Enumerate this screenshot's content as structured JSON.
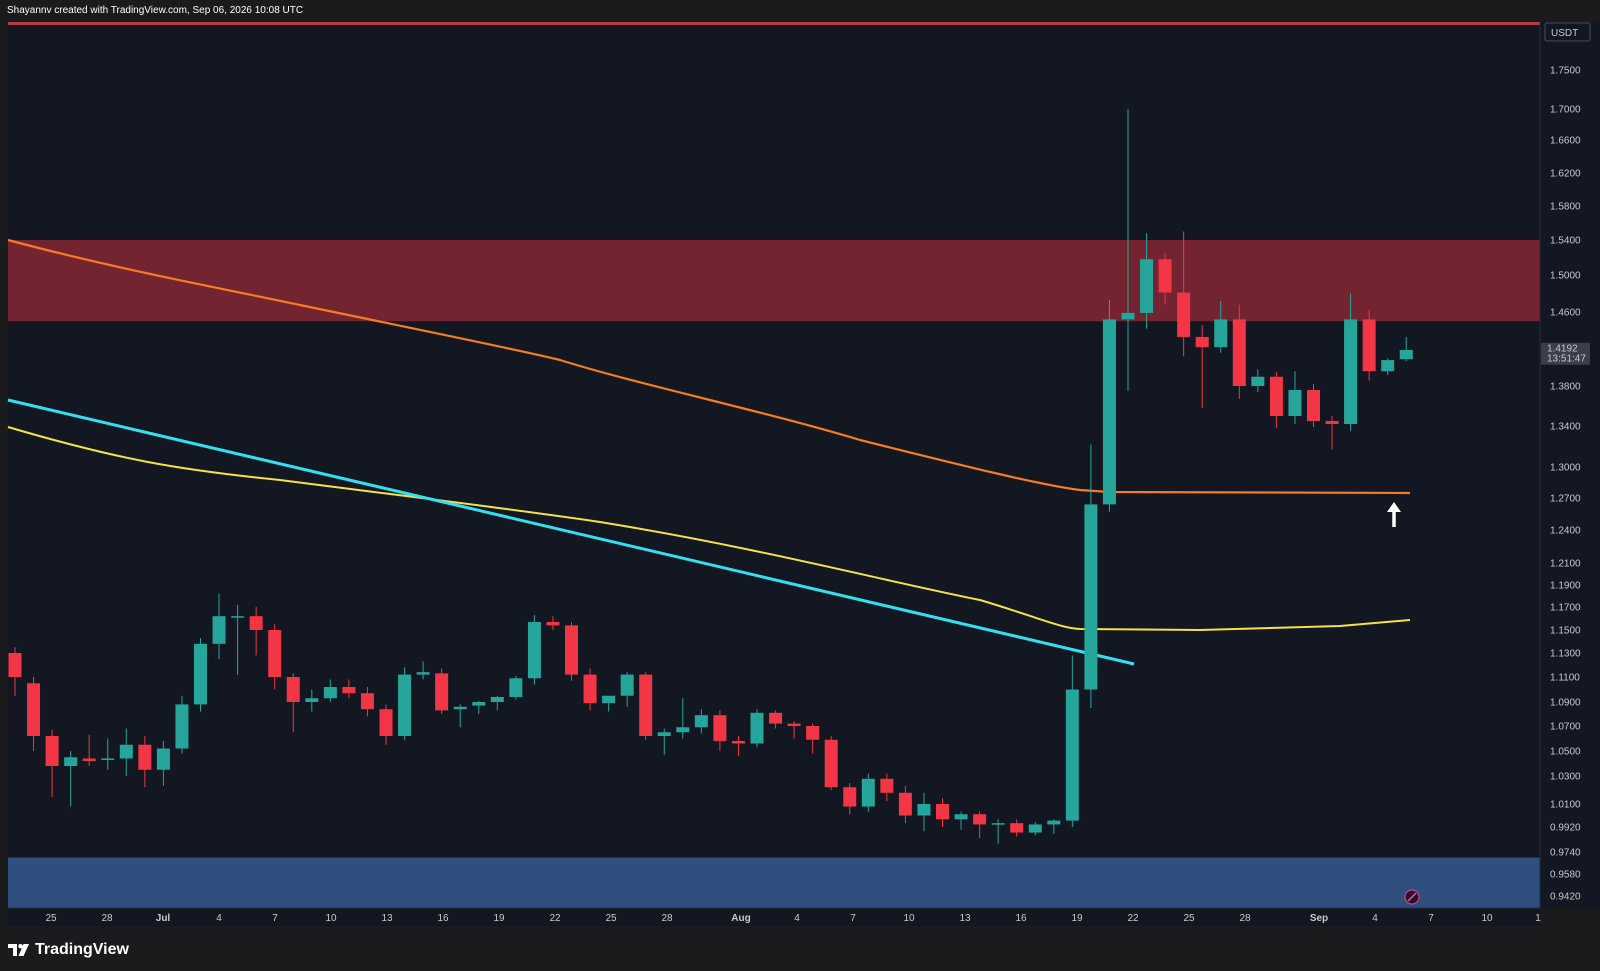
{
  "header": {
    "attribution": "Shayannv created with TradingView.com, Sep 06, 2026 10:08 UTC"
  },
  "footer": {
    "brand": "TradingView"
  },
  "colors": {
    "background": "#131722",
    "up": "#26a69a",
    "down": "#f23645",
    "resistance_zone": "#742330",
    "support_zone": "#2f4f7f",
    "ema_orange": "#f57c1f",
    "ema_yellow": "#f5e14a",
    "trendline": "#33e0f0",
    "top_line": "#b43a45"
  },
  "price_scale": {
    "currency_label": "USDT",
    "ticks": [
      "1.7500",
      "1.7000",
      "1.6600",
      "1.6200",
      "1.5800",
      "1.5400",
      "1.5000",
      "1.4600",
      "1.3800",
      "1.3400",
      "1.3000",
      "1.2700",
      "1.2400",
      "1.2100",
      "1.1900",
      "1.1700",
      "1.1500",
      "1.1300",
      "1.1100",
      "1.0900",
      "1.0700",
      "1.0500",
      "1.0300",
      "1.0100",
      "0.9920",
      "0.9740",
      "0.9580",
      "0.9420"
    ],
    "current_price": "1.4192",
    "countdown": "13:51:47"
  },
  "chart_data": {
    "type": "candlestick",
    "symbol_quote": "USDT",
    "interval": "1D",
    "x_labels": [
      "25",
      "28",
      "Jul",
      "4",
      "7",
      "10",
      "13",
      "16",
      "19",
      "22",
      "25",
      "28",
      "Aug",
      "4",
      "7",
      "10",
      "13",
      "16",
      "19",
      "22",
      "25",
      "28",
      "Sep",
      "4",
      "7",
      "10",
      "1"
    ],
    "zones": {
      "resistance": [
        1.45,
        1.54
      ],
      "support": [
        0.9,
        0.97
      ]
    },
    "candles": [
      {
        "o": 1.13,
        "h": 1.135,
        "l": 1.095,
        "c": 1.11
      },
      {
        "o": 1.105,
        "h": 1.11,
        "l": 1.05,
        "c": 1.062
      },
      {
        "o": 1.062,
        "h": 1.067,
        "l": 1.015,
        "c": 1.038
      },
      {
        "o": 1.038,
        "h": 1.05,
        "l": 1.008,
        "c": 1.045
      },
      {
        "o": 1.044,
        "h": 1.063,
        "l": 1.038,
        "c": 1.042
      },
      {
        "o": 1.043,
        "h": 1.06,
        "l": 1.035,
        "c": 1.044
      },
      {
        "o": 1.044,
        "h": 1.068,
        "l": 1.03,
        "c": 1.055
      },
      {
        "o": 1.055,
        "h": 1.062,
        "l": 1.022,
        "c": 1.035
      },
      {
        "o": 1.035,
        "h": 1.058,
        "l": 1.023,
        "c": 1.052
      },
      {
        "o": 1.052,
        "h": 1.095,
        "l": 1.048,
        "c": 1.088
      },
      {
        "o": 1.088,
        "h": 1.143,
        "l": 1.082,
        "c": 1.138
      },
      {
        "o": 1.138,
        "h": 1.182,
        "l": 1.125,
        "c": 1.162
      },
      {
        "o": 1.162,
        "h": 1.172,
        "l": 1.112,
        "c": 1.162
      },
      {
        "o": 1.162,
        "h": 1.17,
        "l": 1.128,
        "c": 1.15
      },
      {
        "o": 1.15,
        "h": 1.155,
        "l": 1.1,
        "c": 1.11
      },
      {
        "o": 1.11,
        "h": 1.113,
        "l": 1.065,
        "c": 1.09
      },
      {
        "o": 1.09,
        "h": 1.1,
        "l": 1.082,
        "c": 1.093
      },
      {
        "o": 1.093,
        "h": 1.108,
        "l": 1.09,
        "c": 1.102
      },
      {
        "o": 1.102,
        "h": 1.108,
        "l": 1.093,
        "c": 1.097
      },
      {
        "o": 1.097,
        "h": 1.102,
        "l": 1.078,
        "c": 1.084
      },
      {
        "o": 1.084,
        "h": 1.088,
        "l": 1.055,
        "c": 1.062
      },
      {
        "o": 1.062,
        "h": 1.118,
        "l": 1.059,
        "c": 1.112
      },
      {
        "o": 1.112,
        "h": 1.123,
        "l": 1.108,
        "c": 1.114
      },
      {
        "o": 1.113,
        "h": 1.117,
        "l": 1.08,
        "c": 1.083
      },
      {
        "o": 1.084,
        "h": 1.088,
        "l": 1.069,
        "c": 1.086
      },
      {
        "o": 1.087,
        "h": 1.091,
        "l": 1.08,
        "c": 1.09
      },
      {
        "o": 1.09,
        "h": 1.095,
        "l": 1.083,
        "c": 1.094
      },
      {
        "o": 1.094,
        "h": 1.111,
        "l": 1.092,
        "c": 1.109
      },
      {
        "o": 1.109,
        "h": 1.163,
        "l": 1.104,
        "c": 1.157
      },
      {
        "o": 1.157,
        "h": 1.162,
        "l": 1.15,
        "c": 1.154
      },
      {
        "o": 1.154,
        "h": 1.157,
        "l": 1.107,
        "c": 1.112
      },
      {
        "o": 1.112,
        "h": 1.117,
        "l": 1.083,
        "c": 1.089
      },
      {
        "o": 1.089,
        "h": 1.094,
        "l": 1.082,
        "c": 1.095
      },
      {
        "o": 1.095,
        "h": 1.114,
        "l": 1.086,
        "c": 1.112
      },
      {
        "o": 1.112,
        "h": 1.114,
        "l": 1.059,
        "c": 1.062
      },
      {
        "o": 1.062,
        "h": 1.068,
        "l": 1.047,
        "c": 1.065
      },
      {
        "o": 1.065,
        "h": 1.093,
        "l": 1.06,
        "c": 1.069
      },
      {
        "o": 1.069,
        "h": 1.084,
        "l": 1.064,
        "c": 1.079
      },
      {
        "o": 1.079,
        "h": 1.083,
        "l": 1.05,
        "c": 1.058
      },
      {
        "o": 1.058,
        "h": 1.062,
        "l": 1.046,
        "c": 1.056
      },
      {
        "o": 1.056,
        "h": 1.084,
        "l": 1.053,
        "c": 1.081
      },
      {
        "o": 1.081,
        "h": 1.083,
        "l": 1.068,
        "c": 1.072
      },
      {
        "o": 1.072,
        "h": 1.074,
        "l": 1.06,
        "c": 1.07
      },
      {
        "o": 1.07,
        "h": 1.072,
        "l": 1.048,
        "c": 1.059
      },
      {
        "o": 1.059,
        "h": 1.062,
        "l": 1.02,
        "c": 1.022
      },
      {
        "o": 1.022,
        "h": 1.025,
        "l": 1.002,
        "c": 1.008
      },
      {
        "o": 1.008,
        "h": 1.032,
        "l": 1.004,
        "c": 1.028
      },
      {
        "o": 1.028,
        "h": 1.032,
        "l": 1.012,
        "c": 1.018
      },
      {
        "o": 1.018,
        "h": 1.023,
        "l": 0.995,
        "c": 1.001
      },
      {
        "o": 1.001,
        "h": 1.018,
        "l": 0.989,
        "c": 1.01
      },
      {
        "o": 1.01,
        "h": 1.014,
        "l": 0.992,
        "c": 0.998
      },
      {
        "o": 0.998,
        "h": 1.004,
        "l": 0.99,
        "c": 1.002
      },
      {
        "o": 1.002,
        "h": 1.004,
        "l": 0.984,
        "c": 0.994
      },
      {
        "o": 0.994,
        "h": 0.998,
        "l": 0.98,
        "c": 0.995
      },
      {
        "o": 0.995,
        "h": 0.998,
        "l": 0.985,
        "c": 0.988
      },
      {
        "o": 0.988,
        "h": 0.996,
        "l": 0.986,
        "c": 0.994
      },
      {
        "o": 0.994,
        "h": 0.998,
        "l": 0.987,
        "c": 0.997
      },
      {
        "o": 0.997,
        "h": 1.128,
        "l": 0.992,
        "c": 1.1
      },
      {
        "o": 1.1,
        "h": 1.322,
        "l": 1.085,
        "c": 1.264
      },
      {
        "o": 1.264,
        "h": 1.473,
        "l": 1.257,
        "c": 1.452
      },
      {
        "o": 1.452,
        "h": 1.7,
        "l": 1.375,
        "c": 1.459
      },
      {
        "o": 1.459,
        "h": 1.548,
        "l": 1.442,
        "c": 1.518
      },
      {
        "o": 1.518,
        "h": 1.525,
        "l": 1.468,
        "c": 1.481
      },
      {
        "o": 1.481,
        "h": 1.55,
        "l": 1.412,
        "c": 1.433
      },
      {
        "o": 1.433,
        "h": 1.446,
        "l": 1.358,
        "c": 1.422
      },
      {
        "o": 1.422,
        "h": 1.472,
        "l": 1.416,
        "c": 1.452
      },
      {
        "o": 1.452,
        "h": 1.468,
        "l": 1.367,
        "c": 1.38
      },
      {
        "o": 1.38,
        "h": 1.398,
        "l": 1.374,
        "c": 1.39
      },
      {
        "o": 1.39,
        "h": 1.395,
        "l": 1.338,
        "c": 1.35
      },
      {
        "o": 1.35,
        "h": 1.396,
        "l": 1.342,
        "c": 1.376
      },
      {
        "o": 1.376,
        "h": 1.382,
        "l": 1.339,
        "c": 1.345
      },
      {
        "o": 1.345,
        "h": 1.35,
        "l": 1.317,
        "c": 1.342
      },
      {
        "o": 1.342,
        "h": 1.48,
        "l": 1.335,
        "c": 1.452
      },
      {
        "o": 1.452,
        "h": 1.462,
        "l": 1.386,
        "c": 1.396
      },
      {
        "o": 1.396,
        "h": 1.41,
        "l": 1.392,
        "c": 1.408
      },
      {
        "o": 1.409,
        "h": 1.433,
        "l": 1.407,
        "c": 1.419
      }
    ]
  }
}
